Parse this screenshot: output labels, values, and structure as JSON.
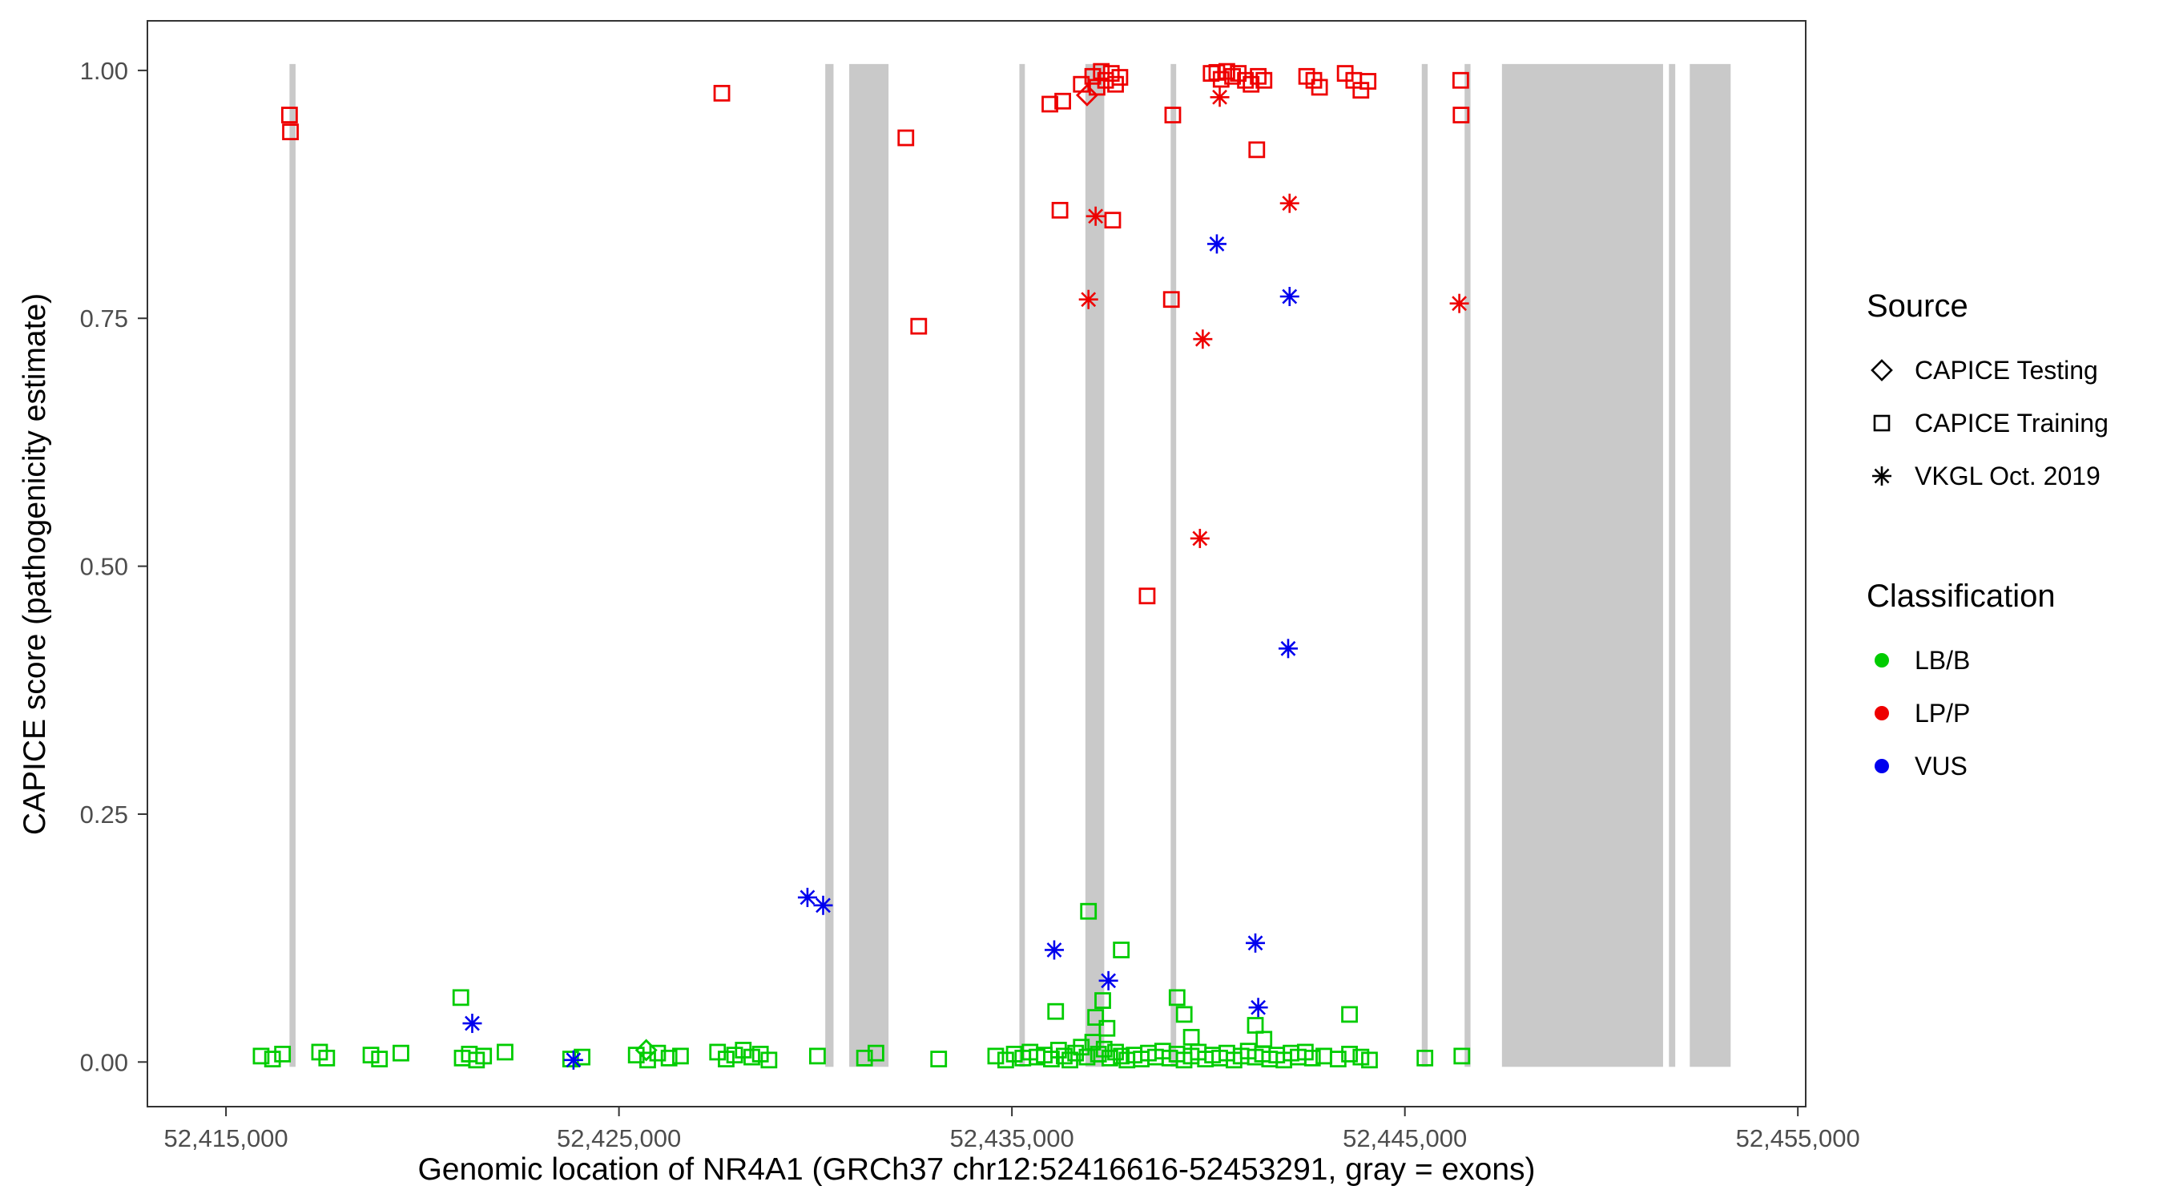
{
  "legend": {
    "source": {
      "title": "Source",
      "items": [
        {
          "label": "CAPICE Testing",
          "shape": "diamond"
        },
        {
          "label": "CAPICE Training",
          "shape": "square"
        },
        {
          "label": "VKGL Oct. 2019",
          "shape": "asterisk"
        }
      ]
    },
    "classification": {
      "title": "Classification",
      "items": [
        {
          "label": "LB/B",
          "color": "#00CC00"
        },
        {
          "label": "LP/P",
          "color": "#EE0000"
        },
        {
          "label": "VUS",
          "color": "#0000EE"
        }
      ]
    }
  },
  "colors": {
    "exon": "#C9C9C9",
    "panel_border": "#333333",
    "tick_text": "#4D4D4D",
    "classification": {
      "LB/B": "#00CC00",
      "LP/P": "#EE0000",
      "VUS": "#0000EE"
    }
  },
  "chart_data": {
    "type": "scatter",
    "xlabel": "Genomic location of NR4A1 (GRCh37 chr12:52416616-52453291, gray = exons)",
    "ylabel": "CAPICE score (pathogenicity estimate)",
    "x_range": [
      52413000,
      52455200
    ],
    "y_range": [
      -0.045,
      1.05
    ],
    "x_ticks": [
      {
        "v": 52415000,
        "t": "52,415,000"
      },
      {
        "v": 52425000,
        "t": "52,425,000"
      },
      {
        "v": 52435000,
        "t": "52,435,000"
      },
      {
        "v": 52445000,
        "t": "52,445,000"
      },
      {
        "v": 52455000,
        "t": "52,455,000"
      }
    ],
    "y_ticks": [
      {
        "v": 0,
        "t": "0.00"
      },
      {
        "v": 0.25,
        "t": "0.25"
      },
      {
        "v": 0.5,
        "t": "0.50"
      },
      {
        "v": 0.75,
        "t": "0.75"
      },
      {
        "v": 1,
        "t": "1.00"
      }
    ],
    "exons": [
      [
        52416616,
        52416770
      ],
      [
        52430250,
        52430460
      ],
      [
        52430860,
        52431860
      ],
      [
        52435190,
        52435330
      ],
      [
        52436870,
        52437350
      ],
      [
        52439040,
        52439180
      ],
      [
        52445430,
        52445580
      ],
      [
        52446520,
        52446670
      ],
      [
        52447470,
        52451570
      ],
      [
        52451720,
        52451880
      ],
      [
        52452250,
        52453290
      ]
    ],
    "classes": [
      "LB/B",
      "LP/P",
      "VUS"
    ],
    "sources": [
      "CAPICE Testing",
      "CAPICE Training",
      "VKGL Oct. 2019"
    ],
    "shape_by_source": {
      "CAPICE Testing": "diamond",
      "CAPICE Training": "square",
      "VKGL Oct. 2019": "asterisk"
    },
    "point_format": [
      "genomic_position",
      "capice_score",
      "class_index",
      "source_index"
    ],
    "points": [
      [
        52415894,
        0.006,
        0,
        1
      ],
      [
        52416184,
        0.003,
        0,
        1
      ],
      [
        52416438,
        0.008,
        0,
        1
      ],
      [
        52417382,
        0.01,
        0,
        1
      ],
      [
        52417563,
        0.004,
        0,
        1
      ],
      [
        52418689,
        0.007,
        0,
        1
      ],
      [
        52418906,
        0.003,
        0,
        1
      ],
      [
        52419451,
        0.009,
        0,
        1
      ],
      [
        52421012,
        0.004,
        0,
        1
      ],
      [
        52421193,
        0.008,
        0,
        1
      ],
      [
        52421375,
        0.002,
        0,
        1
      ],
      [
        52421556,
        0.006,
        0,
        1
      ],
      [
        52422101,
        0.01,
        0,
        1
      ],
      [
        52423771,
        0.003,
        0,
        1
      ],
      [
        52424061,
        0.005,
        0,
        1
      ],
      [
        52425440,
        0.007,
        0,
        1
      ],
      [
        52425731,
        0.002,
        0,
        1
      ],
      [
        52425985,
        0.009,
        0,
        1
      ],
      [
        52426275,
        0.004,
        0,
        1
      ],
      [
        52426566,
        0.006,
        0,
        1
      ],
      [
        52427510,
        0.01,
        0,
        1
      ],
      [
        52427728,
        0.003,
        0,
        1
      ],
      [
        52427945,
        0.007,
        0,
        1
      ],
      [
        52428163,
        0.012,
        0,
        1
      ],
      [
        52428381,
        0.005,
        0,
        1
      ],
      [
        52428599,
        0.008,
        0,
        1
      ],
      [
        52428817,
        0.002,
        0,
        1
      ],
      [
        52430051,
        0.006,
        0,
        1
      ],
      [
        52431249,
        0.004,
        0,
        1
      ],
      [
        52431539,
        0.009,
        0,
        1
      ],
      [
        52433136,
        0.003,
        0,
        1
      ],
      [
        52434588,
        0.006,
        0,
        1
      ],
      [
        52434842,
        0.002,
        0,
        1
      ],
      [
        52435060,
        0.008,
        0,
        1
      ],
      [
        52435278,
        0.004,
        0,
        1
      ],
      [
        52435460,
        0.01,
        0,
        1
      ],
      [
        52435641,
        0.005,
        0,
        1
      ],
      [
        52435823,
        0.007,
        0,
        1
      ],
      [
        52436004,
        0.003,
        0,
        1
      ],
      [
        52436186,
        0.012,
        0,
        1
      ],
      [
        52436331,
        0.006,
        0,
        1
      ],
      [
        52436476,
        0.002,
        0,
        1
      ],
      [
        52436621,
        0.009,
        0,
        1
      ],
      [
        52436766,
        0.015,
        0,
        1
      ],
      [
        52436912,
        0.005,
        0,
        1
      ],
      [
        52437057,
        0.02,
        0,
        1
      ],
      [
        52437202,
        0.008,
        0,
        1
      ],
      [
        52437347,
        0.013,
        0,
        1
      ],
      [
        52437492,
        0.004,
        0,
        1
      ],
      [
        52437638,
        0.01,
        0,
        1
      ],
      [
        52437783,
        0.006,
        0,
        1
      ],
      [
        52437928,
        0.002,
        0,
        1
      ],
      [
        52438110,
        0.007,
        0,
        1
      ],
      [
        52438291,
        0.003,
        0,
        1
      ],
      [
        52438473,
        0.009,
        0,
        1
      ],
      [
        52438654,
        0.005,
        0,
        1
      ],
      [
        52438836,
        0.011,
        0,
        1
      ],
      [
        52439017,
        0.004,
        0,
        1
      ],
      [
        52439199,
        0.008,
        0,
        1
      ],
      [
        52439380,
        0.002,
        0,
        1
      ],
      [
        52439562,
        0.006,
        0,
        1
      ],
      [
        52439743,
        0.01,
        0,
        1
      ],
      [
        52439925,
        0.003,
        0,
        1
      ],
      [
        52440106,
        0.007,
        0,
        1
      ],
      [
        52440288,
        0.004,
        0,
        1
      ],
      [
        52440469,
        0.009,
        0,
        1
      ],
      [
        52440651,
        0.002,
        0,
        1
      ],
      [
        52440832,
        0.006,
        0,
        1
      ],
      [
        52441014,
        0.011,
        0,
        1
      ],
      [
        52441195,
        0.005,
        0,
        1
      ],
      [
        52441377,
        0.008,
        0,
        1
      ],
      [
        52441558,
        0.003,
        0,
        1
      ],
      [
        52441740,
        0.007,
        0,
        1
      ],
      [
        52441921,
        0.002,
        0,
        1
      ],
      [
        52442103,
        0.009,
        0,
        1
      ],
      [
        52442284,
        0.005,
        0,
        1
      ],
      [
        52442466,
        0.01,
        0,
        1
      ],
      [
        52442647,
        0.004,
        0,
        1
      ],
      [
        52442938,
        0.006,
        0,
        1
      ],
      [
        52443301,
        0.003,
        0,
        1
      ],
      [
        52443591,
        0.008,
        0,
        1
      ],
      [
        52443882,
        0.005,
        0,
        1
      ],
      [
        52444099,
        0.002,
        0,
        1
      ],
      [
        52445510,
        0.004,
        0,
        1
      ],
      [
        52446450,
        0.006,
        0,
        1
      ],
      [
        52420976,
        0.065,
        0,
        1
      ],
      [
        52436113,
        0.051,
        0,
        1
      ],
      [
        52436948,
        0.152,
        0,
        1
      ],
      [
        52437311,
        0.062,
        0,
        1
      ],
      [
        52437130,
        0.045,
        0,
        1
      ],
      [
        52437420,
        0.034,
        0,
        1
      ],
      [
        52437783,
        0.113,
        0,
        1
      ],
      [
        52439203,
        0.065,
        0,
        1
      ],
      [
        52439384,
        0.048,
        0,
        1
      ],
      [
        52439566,
        0.025,
        0,
        1
      ],
      [
        52441195,
        0.037,
        0,
        1
      ],
      [
        52441413,
        0.023,
        0,
        1
      ],
      [
        52443591,
        0.048,
        0,
        1
      ],
      [
        52425694,
        0.012,
        0,
        0
      ],
      [
        52416616,
        0.955,
        1,
        1
      ],
      [
        52416640,
        0.938,
        1,
        1
      ],
      [
        52427618,
        0.977,
        1,
        1
      ],
      [
        52432301,
        0.932,
        1,
        1
      ],
      [
        52432628,
        0.742,
        1,
        1
      ],
      [
        52435966,
        0.966,
        1,
        1
      ],
      [
        52436293,
        0.969,
        1,
        1
      ],
      [
        52436222,
        0.859,
        1,
        1
      ],
      [
        52436766,
        0.986,
        1,
        1
      ],
      [
        52437057,
        0.994,
        1,
        1
      ],
      [
        52437166,
        0.983,
        1,
        1
      ],
      [
        52437275,
        0.999,
        1,
        1
      ],
      [
        52437384,
        0.99,
        1,
        1
      ],
      [
        52437529,
        0.997,
        1,
        1
      ],
      [
        52437638,
        0.986,
        1,
        1
      ],
      [
        52437747,
        0.993,
        1,
        1
      ],
      [
        52437565,
        0.849,
        1,
        1
      ],
      [
        52438441,
        0.47,
        1,
        1
      ],
      [
        52439058,
        0.769,
        1,
        1
      ],
      [
        52439094,
        0.955,
        1,
        1
      ],
      [
        52440070,
        0.997,
        1,
        1
      ],
      [
        52440215,
        0.998,
        1,
        1
      ],
      [
        52440324,
        0.991,
        1,
        1
      ],
      [
        52440469,
        0.999,
        1,
        1
      ],
      [
        52440615,
        0.994,
        1,
        1
      ],
      [
        52440760,
        0.997,
        1,
        1
      ],
      [
        52440942,
        0.99,
        1,
        1
      ],
      [
        52441087,
        0.986,
        1,
        1
      ],
      [
        52441268,
        0.994,
        1,
        1
      ],
      [
        52441414,
        0.99,
        1,
        1
      ],
      [
        52441231,
        0.92,
        1,
        1
      ],
      [
        52442501,
        0.994,
        1,
        1
      ],
      [
        52442683,
        0.99,
        1,
        1
      ],
      [
        52442828,
        0.983,
        1,
        1
      ],
      [
        52443481,
        0.997,
        1,
        1
      ],
      [
        52443699,
        0.99,
        1,
        1
      ],
      [
        52443881,
        0.98,
        1,
        1
      ],
      [
        52444062,
        0.989,
        1,
        1
      ],
      [
        52446421,
        0.99,
        1,
        1
      ],
      [
        52446430,
        0.955,
        1,
        1
      ],
      [
        52436912,
        0.975,
        1,
        0
      ],
      [
        52440288,
        0.973,
        1,
        2
      ],
      [
        52437130,
        0.853,
        1,
        2
      ],
      [
        52436948,
        0.769,
        1,
        2
      ],
      [
        52439856,
        0.729,
        1,
        2
      ],
      [
        52439784,
        0.528,
        1,
        2
      ],
      [
        52442066,
        0.866,
        1,
        2
      ],
      [
        52446385,
        0.765,
        1,
        2
      ],
      [
        52421266,
        0.039,
        2,
        2
      ],
      [
        52423843,
        0.002,
        2,
        2
      ],
      [
        52429797,
        0.166,
        2,
        2
      ],
      [
        52430196,
        0.158,
        2,
        2
      ],
      [
        52436077,
        0.113,
        2,
        2
      ],
      [
        52437456,
        0.082,
        2,
        2
      ],
      [
        52440215,
        0.825,
        2,
        2
      ],
      [
        52442066,
        0.772,
        2,
        2
      ],
      [
        52442030,
        0.417,
        2,
        2
      ],
      [
        52441195,
        0.12,
        2,
        2
      ],
      [
        52441268,
        0.055,
        2,
        2
      ]
    ]
  }
}
